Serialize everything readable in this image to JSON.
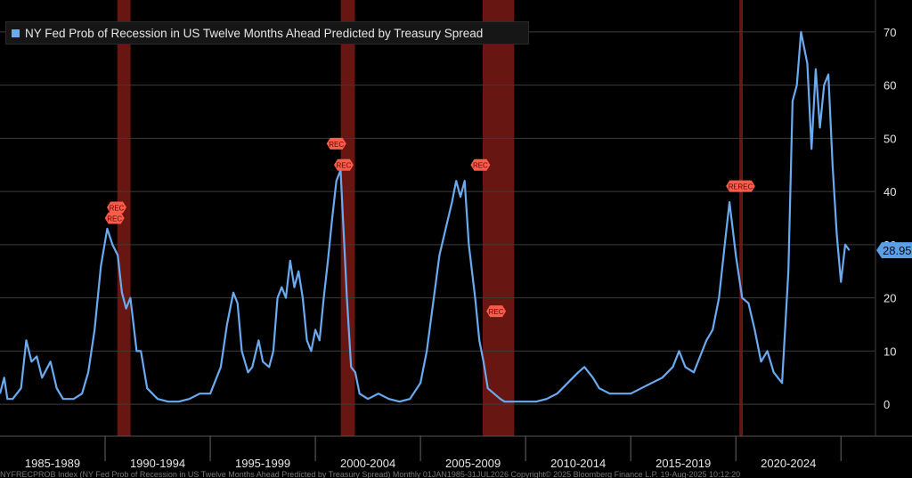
{
  "colors": {
    "background": "#000000",
    "line": "#6aaaf0",
    "recession_band": "#7a1a14",
    "rec_marker": "#ff5a4a",
    "grid": "#3c3c3c",
    "last_value_badge": "#5b9fe6"
  },
  "legend": {
    "label": "NY Fed Prob of Recession in US Twelve Months Ahead Predicted by Treasury Spread"
  },
  "footer": {
    "text": "NYFRECPROB Index (NY Fed Prob of Recession in US Twelve Months Ahead Predicted by Treasury Spread)   Monthly 01JAN1985-31JUL2026      Copyright© 2025 Bloomberg Finance L.P.      19-Aug-2025 10:12:20"
  },
  "chart_data": {
    "type": "line",
    "series": [
      {
        "name": "NY Fed Prob of Recession in US Twelve Months Ahead Predicted by Treasury Spread",
        "values": [
          [
            1985.0,
            2
          ],
          [
            1985.2,
            5
          ],
          [
            1985.35,
            1
          ],
          [
            1985.6,
            1
          ],
          [
            1986.0,
            3
          ],
          [
            1986.25,
            12
          ],
          [
            1986.5,
            8
          ],
          [
            1986.75,
            9
          ],
          [
            1987.0,
            5
          ],
          [
            1987.4,
            8
          ],
          [
            1987.7,
            3
          ],
          [
            1988.0,
            1
          ],
          [
            1988.5,
            1
          ],
          [
            1988.9,
            2
          ],
          [
            1989.2,
            6
          ],
          [
            1989.5,
            14
          ],
          [
            1989.8,
            26
          ],
          [
            1990.1,
            33
          ],
          [
            1990.35,
            30
          ],
          [
            1990.6,
            28
          ],
          [
            1990.8,
            21
          ],
          [
            1991.0,
            18
          ],
          [
            1991.2,
            20
          ],
          [
            1991.5,
            10
          ],
          [
            1991.7,
            10
          ],
          [
            1992.0,
            3
          ],
          [
            1992.5,
            1
          ],
          [
            1993.0,
            0.5
          ],
          [
            1993.5,
            0.5
          ],
          [
            1994.0,
            1
          ],
          [
            1994.5,
            2
          ],
          [
            1995.0,
            2
          ],
          [
            1995.5,
            7
          ],
          [
            1995.8,
            15
          ],
          [
            1996.1,
            21
          ],
          [
            1996.3,
            19
          ],
          [
            1996.5,
            10
          ],
          [
            1996.8,
            6
          ],
          [
            1997.0,
            7
          ],
          [
            1997.3,
            12
          ],
          [
            1997.5,
            8
          ],
          [
            1997.8,
            7
          ],
          [
            1998.0,
            10
          ],
          [
            1998.2,
            20
          ],
          [
            1998.4,
            22
          ],
          [
            1998.6,
            20
          ],
          [
            1998.8,
            27
          ],
          [
            1999.0,
            22
          ],
          [
            1999.2,
            25
          ],
          [
            1999.4,
            20
          ],
          [
            1999.6,
            12
          ],
          [
            1999.8,
            10
          ],
          [
            2000.0,
            14
          ],
          [
            2000.2,
            12
          ],
          [
            2000.4,
            20
          ],
          [
            2000.6,
            27
          ],
          [
            2000.8,
            35
          ],
          [
            2001.0,
            42
          ],
          [
            2001.2,
            44
          ],
          [
            2001.5,
            20
          ],
          [
            2001.7,
            7
          ],
          [
            2001.9,
            6
          ],
          [
            2002.1,
            2
          ],
          [
            2002.5,
            1
          ],
          [
            2003.0,
            2
          ],
          [
            2003.5,
            1
          ],
          [
            2004.0,
            0.5
          ],
          [
            2004.5,
            1
          ],
          [
            2005.0,
            4
          ],
          [
            2005.3,
            10
          ],
          [
            2005.6,
            19
          ],
          [
            2005.9,
            28
          ],
          [
            2006.2,
            33
          ],
          [
            2006.5,
            38
          ],
          [
            2006.7,
            42
          ],
          [
            2006.9,
            39
          ],
          [
            2007.1,
            42
          ],
          [
            2007.3,
            30
          ],
          [
            2007.6,
            20
          ],
          [
            2007.8,
            12
          ],
          [
            2008.0,
            8
          ],
          [
            2008.2,
            3
          ],
          [
            2008.5,
            2
          ],
          [
            2008.8,
            1
          ],
          [
            2009.0,
            0.5
          ],
          [
            2009.5,
            0.5
          ],
          [
            2010.0,
            0.5
          ],
          [
            2010.5,
            0.5
          ],
          [
            2011.0,
            1
          ],
          [
            2011.5,
            2
          ],
          [
            2012.0,
            4
          ],
          [
            2012.5,
            6
          ],
          [
            2012.8,
            7
          ],
          [
            2013.2,
            5
          ],
          [
            2013.5,
            3
          ],
          [
            2014.0,
            2
          ],
          [
            2014.5,
            2
          ],
          [
            2015.0,
            2
          ],
          [
            2015.5,
            3
          ],
          [
            2016.0,
            4
          ],
          [
            2016.5,
            5
          ],
          [
            2017.0,
            7
          ],
          [
            2017.3,
            10
          ],
          [
            2017.6,
            7
          ],
          [
            2018.0,
            6
          ],
          [
            2018.3,
            9
          ],
          [
            2018.6,
            12
          ],
          [
            2018.9,
            14
          ],
          [
            2019.2,
            20
          ],
          [
            2019.5,
            31
          ],
          [
            2019.7,
            38
          ],
          [
            2020.0,
            28
          ],
          [
            2020.3,
            20
          ],
          [
            2020.6,
            19
          ],
          [
            2020.9,
            14
          ],
          [
            2021.2,
            8
          ],
          [
            2021.5,
            10
          ],
          [
            2021.8,
            6
          ],
          [
            2022.0,
            5
          ],
          [
            2022.2,
            4
          ],
          [
            2022.5,
            25
          ],
          [
            2022.7,
            57
          ],
          [
            2022.9,
            60
          ],
          [
            2023.1,
            70
          ],
          [
            2023.4,
            64
          ],
          [
            2023.6,
            48
          ],
          [
            2023.8,
            63
          ],
          [
            2024.0,
            52
          ],
          [
            2024.2,
            60
          ],
          [
            2024.4,
            62
          ],
          [
            2024.6,
            45
          ],
          [
            2024.8,
            32
          ],
          [
            2025.0,
            23
          ],
          [
            2025.2,
            30
          ],
          [
            2025.4,
            28.95
          ]
        ]
      }
    ],
    "x_tick_labels": [
      "1985-1989",
      "1990-1994",
      "1995-1999",
      "2000-2004",
      "2005-2009",
      "2010-2014",
      "2015-2019",
      "2020-2024"
    ],
    "y_ticks": [
      0,
      10,
      20,
      30,
      40,
      50,
      60,
      70
    ],
    "xlim": [
      1985.0,
      2026.6
    ],
    "ylim": [
      -6,
      76
    ],
    "grid": true,
    "legend_position": "top-left",
    "last_value": "28.95",
    "recession_bands": [
      [
        1990.58,
        1991.21
      ],
      [
        2001.21,
        2001.88
      ],
      [
        2007.96,
        2009.46
      ],
      [
        2020.17,
        2020.33
      ]
    ],
    "rec_markers": [
      {
        "label": "REC",
        "x": 1990.55,
        "y": 37
      },
      {
        "label": "REC",
        "x": 1990.45,
        "y": 35
      },
      {
        "label": "REC",
        "x": 2001.0,
        "y": 49
      },
      {
        "label": "REC",
        "x": 2001.35,
        "y": 45
      },
      {
        "label": "REC",
        "x": 2007.85,
        "y": 45
      },
      {
        "label": "REC",
        "x": 2008.6,
        "y": 17.5
      },
      {
        "label": "REC",
        "x": 2020.0,
        "y": 41
      },
      {
        "label": "REC",
        "x": 2020.45,
        "y": 41
      }
    ]
  }
}
